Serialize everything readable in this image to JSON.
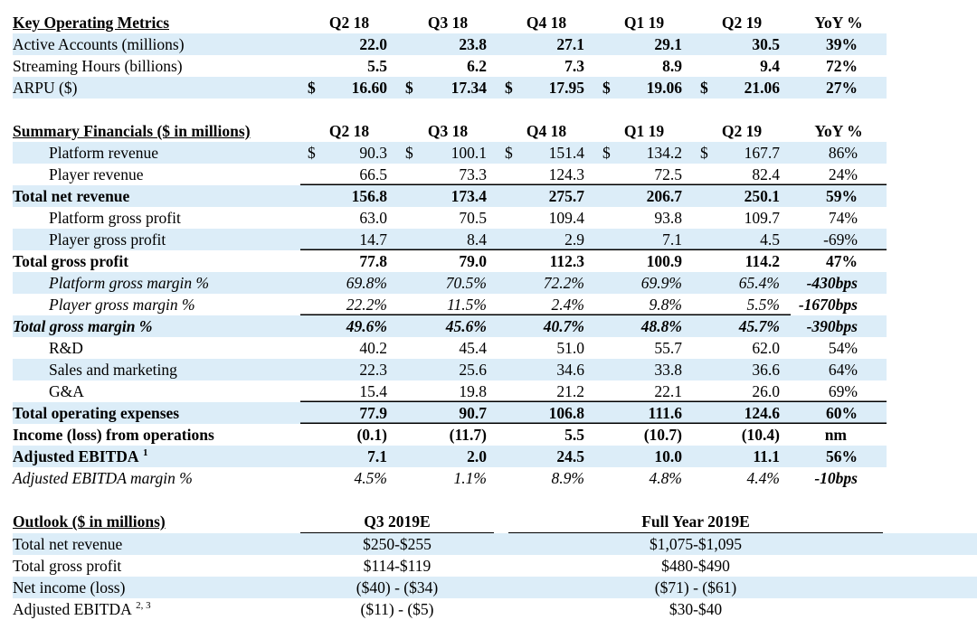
{
  "key_metrics": {
    "title": "Key Operating Metrics",
    "columns": [
      "Q2 18",
      "Q3 18",
      "Q4 18",
      "Q1 19",
      "Q2 19",
      "YoY %"
    ],
    "rows": [
      {
        "label": "Active Accounts (millions)",
        "values": [
          "22.0",
          "23.8",
          "27.1",
          "29.1",
          "30.5"
        ],
        "yoy": "39%"
      },
      {
        "label": "Streaming Hours (billions)",
        "values": [
          "5.5",
          "6.2",
          "7.3",
          "8.9",
          "9.4"
        ],
        "yoy": "72%"
      },
      {
        "label": "ARPU ($)",
        "currency": "$",
        "values": [
          "16.60",
          "17.34",
          "17.95",
          "19.06",
          "21.06"
        ],
        "yoy": "27%"
      }
    ]
  },
  "summary": {
    "title": "Summary Financials ($ in millions)",
    "columns": [
      "Q2 18",
      "Q3 18",
      "Q4 18",
      "Q1 19",
      "Q2 19",
      "YoY %"
    ],
    "rows": [
      {
        "label": "Platform revenue",
        "currency": "$",
        "values": [
          "90.3",
          "100.1",
          "151.4",
          "134.2",
          "167.7"
        ],
        "yoy": "86%"
      },
      {
        "label": "Player revenue",
        "values": [
          "66.5",
          "73.3",
          "124.3",
          "72.5",
          "82.4"
        ],
        "yoy": "24%"
      },
      {
        "label": "Total net revenue",
        "values": [
          "156.8",
          "173.4",
          "275.7",
          "206.7",
          "250.1"
        ],
        "yoy": "59%"
      },
      {
        "label": "Platform gross profit",
        "values": [
          "63.0",
          "70.5",
          "109.4",
          "93.8",
          "109.7"
        ],
        "yoy": "74%"
      },
      {
        "label": "Player gross profit",
        "values": [
          "14.7",
          "8.4",
          "2.9",
          "7.1",
          "4.5"
        ],
        "yoy": "-69%"
      },
      {
        "label": "Total gross profit",
        "values": [
          "77.8",
          "79.0",
          "112.3",
          "100.9",
          "114.2"
        ],
        "yoy": "47%"
      },
      {
        "label": "Platform gross margin %",
        "values": [
          "69.8%",
          "70.5%",
          "72.2%",
          "69.9%",
          "65.4%"
        ],
        "yoy": "-430bps"
      },
      {
        "label": "Player gross margin %",
        "values": [
          "22.2%",
          "11.5%",
          "2.4%",
          "9.8%",
          "5.5%"
        ],
        "yoy": "-1670bps"
      },
      {
        "label": "Total gross margin %",
        "values": [
          "49.6%",
          "45.6%",
          "40.7%",
          "48.8%",
          "45.7%"
        ],
        "yoy": "-390bps"
      },
      {
        "label": "R&D",
        "values": [
          "40.2",
          "45.4",
          "51.0",
          "55.7",
          "62.0"
        ],
        "yoy": "54%"
      },
      {
        "label": "Sales and marketing",
        "values": [
          "22.3",
          "25.6",
          "34.6",
          "33.8",
          "36.6"
        ],
        "yoy": "64%"
      },
      {
        "label": "G&A",
        "values": [
          "15.4",
          "19.8",
          "21.2",
          "22.1",
          "26.0"
        ],
        "yoy": "69%"
      },
      {
        "label": "Total operating expenses",
        "values": [
          "77.9",
          "90.7",
          "106.8",
          "111.6",
          "124.6"
        ],
        "yoy": "60%"
      },
      {
        "label": "Income (loss) from operations",
        "values": [
          "(0.1)",
          "(11.7)",
          "5.5",
          "(10.7)",
          "(10.4)"
        ],
        "yoy": "nm"
      },
      {
        "label": "Adjusted EBITDA",
        "sup": "1",
        "values": [
          "7.1",
          "2.0",
          "24.5",
          "10.0",
          "11.1"
        ],
        "yoy": "56%"
      },
      {
        "label": "Adjusted EBITDA margin %",
        "values": [
          "4.5%",
          "1.1%",
          "8.9%",
          "4.8%",
          "4.4%"
        ],
        "yoy": "-10bps"
      }
    ]
  },
  "outlook": {
    "title": "Outlook ($ in millions)",
    "columns": [
      "Q3 2019E",
      "Full Year 2019E"
    ],
    "rows": [
      {
        "label": "Total net revenue",
        "q3": "$250-$255",
        "fy": "$1,075-$1,095"
      },
      {
        "label": "Total gross profit",
        "q3": "$114-$119",
        "fy": "$480-$490"
      },
      {
        "label": "Net income (loss)",
        "q3": "($40) - ($34)",
        "fy": "($71) - ($61)"
      },
      {
        "label": "Adjusted EBITDA",
        "sup": "2, 3",
        "q3": "($11) - ($5)",
        "fy": "$30-$40"
      }
    ]
  },
  "colors": {
    "band": "#dcedf8",
    "text": "#000000"
  }
}
